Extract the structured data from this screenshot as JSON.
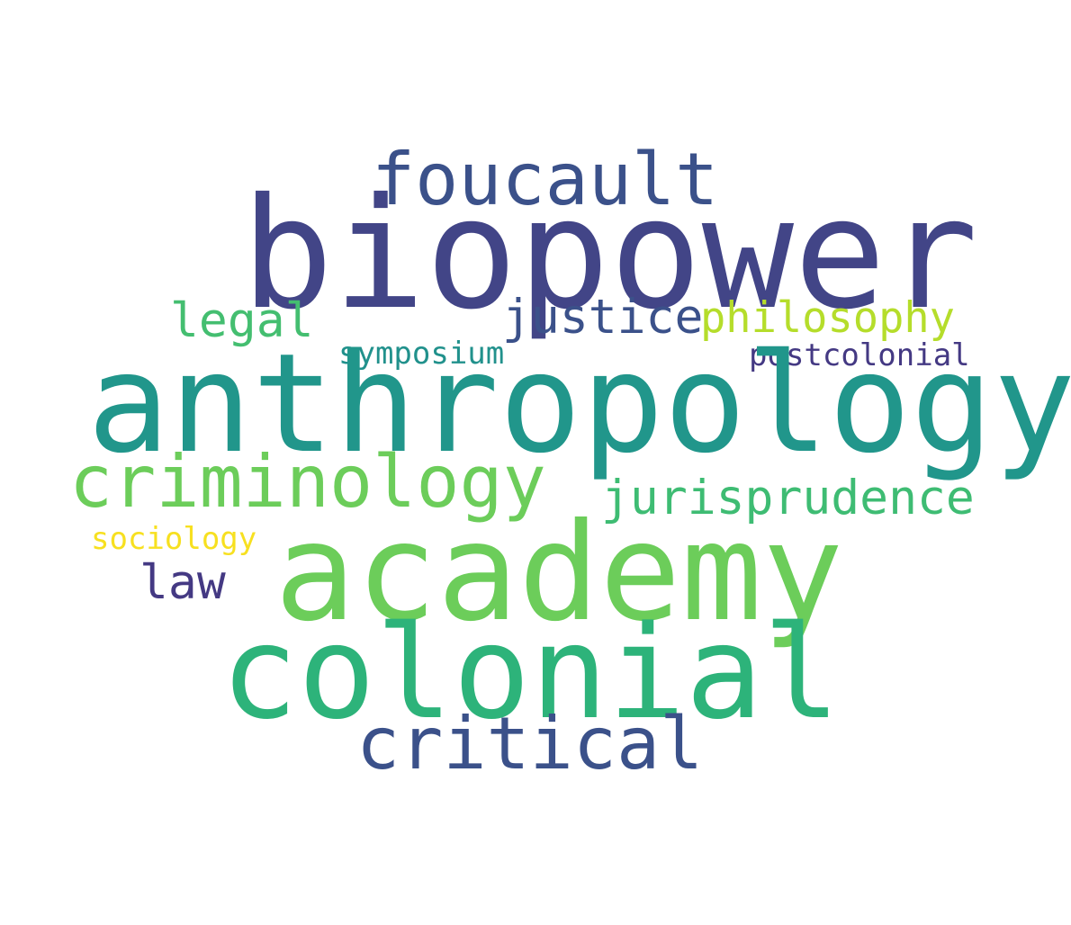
{
  "words": [
    {
      "text": "biopower",
      "color": "#424587"
    },
    {
      "text": "anthropology",
      "color": "#21968b"
    },
    {
      "text": "academy",
      "color": "#6ccd5a"
    },
    {
      "text": "colonial",
      "color": "#2db37a"
    },
    {
      "text": "foucault",
      "color": "#3b518a"
    },
    {
      "text": "criminology",
      "color": "#6ccd5a"
    },
    {
      "text": "critical",
      "color": "#3b518a"
    },
    {
      "text": "jurisprudence",
      "color": "#3ebc73"
    },
    {
      "text": "justice",
      "color": "#3b518a"
    },
    {
      "text": "philosophy",
      "color": "#b5dd2b"
    },
    {
      "text": "legal",
      "color": "#44be70"
    },
    {
      "text": "law",
      "color": "#443983"
    },
    {
      "text": "symposium",
      "color": "#21918c"
    },
    {
      "text": "postcolonial",
      "color": "#443983"
    },
    {
      "text": "sociology",
      "color": "#f7e020"
    }
  ]
}
